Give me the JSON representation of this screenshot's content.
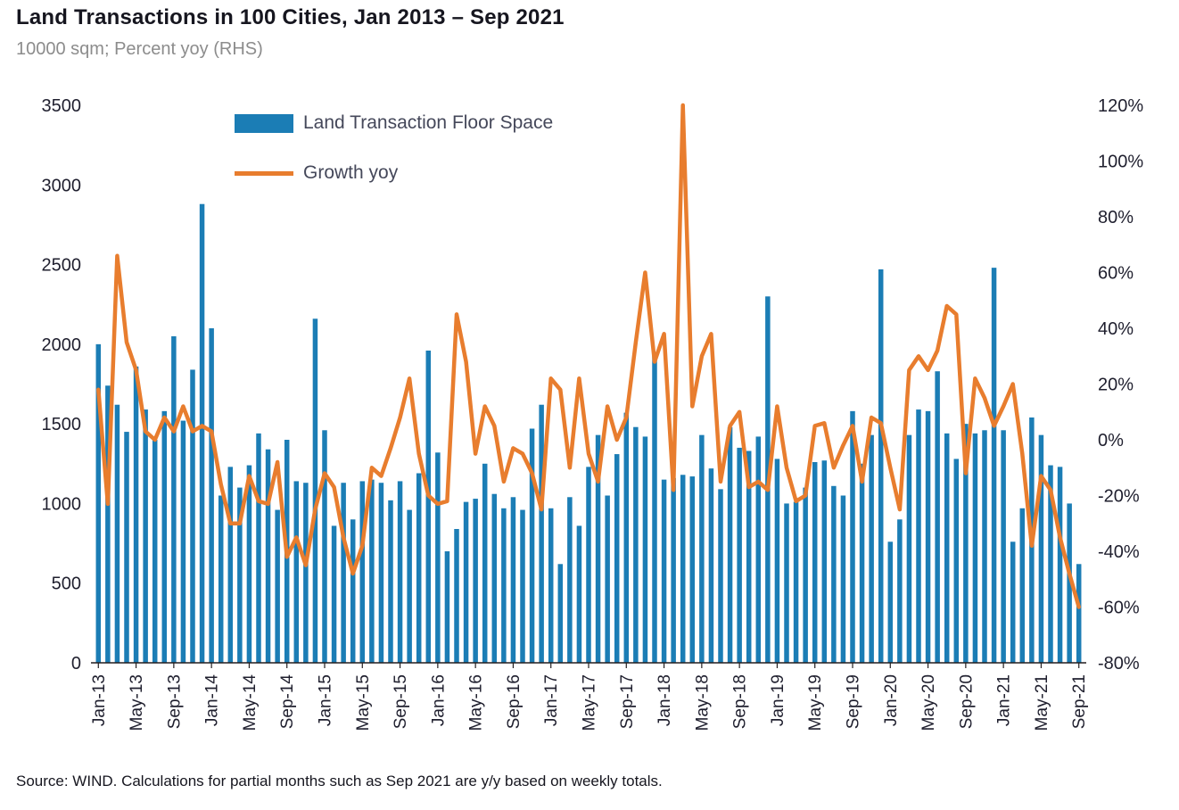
{
  "page": {
    "title": "Land Transactions in 100 Cities, Jan 2013 – Sep 2021",
    "subtitle": "10000 sqm; Percent yoy (RHS)",
    "source": "Source: WIND. Calculations for partial months such as Sep 2021 are y/y based on weekly totals."
  },
  "legend": {
    "bar_label": "Land Transaction Floor Space",
    "line_label": "Growth yoy"
  },
  "colors": {
    "bar": "#1b7db5",
    "line": "#e87d2e",
    "axis_text": "#1f1f2e",
    "axis_line": "#231f20",
    "subtitle_text": "#8c8c8c"
  },
  "chart_data": {
    "type": "bar+line",
    "title": "Land Transactions in 100 Cities, Jan 2013 – Sep 2021",
    "units_note": "10000 sqm; Percent yoy (RHS)",
    "legend_position": "top-left-inside",
    "grid": false,
    "x_tick_every": 4,
    "months": [
      "Jan-13",
      "Feb-13",
      "Mar-13",
      "Apr-13",
      "May-13",
      "Jun-13",
      "Jul-13",
      "Aug-13",
      "Sep-13",
      "Oct-13",
      "Nov-13",
      "Dec-13",
      "Jan-14",
      "Feb-14",
      "Mar-14",
      "Apr-14",
      "May-14",
      "Jun-14",
      "Jul-14",
      "Aug-14",
      "Sep-14",
      "Oct-14",
      "Nov-14",
      "Dec-14",
      "Jan-15",
      "Feb-15",
      "Mar-15",
      "Apr-15",
      "May-15",
      "Jun-15",
      "Jul-15",
      "Aug-15",
      "Sep-15",
      "Oct-15",
      "Nov-15",
      "Dec-15",
      "Jan-16",
      "Feb-16",
      "Mar-16",
      "Apr-16",
      "May-16",
      "Jun-16",
      "Jul-16",
      "Aug-16",
      "Sep-16",
      "Oct-16",
      "Nov-16",
      "Dec-16",
      "Jan-17",
      "Feb-17",
      "Mar-17",
      "Apr-17",
      "May-17",
      "Jun-17",
      "Jul-17",
      "Aug-17",
      "Sep-17",
      "Oct-17",
      "Nov-17",
      "Dec-17",
      "Jan-18",
      "Feb-18",
      "Mar-18",
      "Apr-18",
      "May-18",
      "Jun-18",
      "Jul-18",
      "Aug-18",
      "Sep-18",
      "Oct-18",
      "Nov-18",
      "Dec-18",
      "Jan-19",
      "Feb-19",
      "Mar-19",
      "Apr-19",
      "May-19",
      "Jun-19",
      "Jul-19",
      "Aug-19",
      "Sep-19",
      "Oct-19",
      "Nov-19",
      "Dec-19",
      "Jan-20",
      "Feb-20",
      "Mar-20",
      "Apr-20",
      "May-20",
      "Jun-20",
      "Jul-20",
      "Aug-20",
      "Sep-20",
      "Oct-20",
      "Nov-20",
      "Dec-20",
      "Jan-21",
      "Feb-21",
      "Mar-21",
      "Apr-21",
      "May-21",
      "Jun-21",
      "Jul-21",
      "Aug-21",
      "Sep-21"
    ],
    "series": [
      {
        "name": "Land Transaction Floor Space",
        "type": "bar",
        "axis": "left",
        "values": [
          2000,
          1740,
          1620,
          1450,
          1860,
          1590,
          1400,
          1580,
          2050,
          1520,
          1840,
          2880,
          2100,
          1050,
          1230,
          1100,
          1240,
          1440,
          1340,
          960,
          1400,
          1140,
          1130,
          2160,
          1460,
          860,
          1130,
          900,
          1140,
          1150,
          1130,
          1020,
          1140,
          960,
          1190,
          1960,
          1320,
          700,
          840,
          1010,
          1030,
          1250,
          1060,
          970,
          1040,
          960,
          1470,
          1620,
          970,
          620,
          1040,
          860,
          1230,
          1430,
          1050,
          1310,
          1570,
          1480,
          1420,
          1950,
          1150,
          1160,
          1180,
          1170,
          1430,
          1220,
          1090,
          1480,
          1350,
          1330,
          1420,
          2300,
          1280,
          1000,
          1010,
          1100,
          1260,
          1270,
          1110,
          1050,
          1580,
          1250,
          1430,
          2470,
          760,
          900,
          1430,
          1590,
          1580,
          1830,
          1440,
          1280,
          1500,
          1440,
          1460,
          2480,
          1460,
          760,
          970,
          1540,
          1430,
          1240,
          1230,
          1000,
          620
        ]
      },
      {
        "name": "Growth yoy",
        "type": "line",
        "axis": "right",
        "values": [
          18,
          -23,
          66,
          35,
          25,
          3,
          0,
          8,
          3,
          12,
          3,
          5,
          3,
          -16,
          -30,
          -30,
          -13,
          -22,
          -23,
          -8,
          -42,
          -35,
          -45,
          -25,
          -12,
          -17,
          -35,
          -48,
          -38,
          -10,
          -13,
          -3,
          8,
          22,
          -5,
          -20,
          -23,
          -22,
          45,
          28,
          -5,
          12,
          5,
          -15,
          -3,
          -5,
          -12,
          -25,
          22,
          18,
          -10,
          22,
          -5,
          -15,
          12,
          0,
          8,
          35,
          60,
          28,
          38,
          -18,
          120,
          12,
          30,
          38,
          -15,
          5,
          10,
          -17,
          -15,
          -18,
          12,
          -10,
          -22,
          -20,
          5,
          6,
          -10,
          -2,
          5,
          -15,
          8,
          6,
          -10,
          -25,
          25,
          30,
          25,
          32,
          48,
          45,
          -12,
          22,
          15,
          5,
          12,
          20,
          -5,
          -38,
          -13,
          -18,
          -35,
          -48,
          -60
        ]
      }
    ],
    "left_axis": {
      "min": 0,
      "max": 3500,
      "ticks": [
        0,
        500,
        1000,
        1500,
        2000,
        2500,
        3000,
        3500
      ]
    },
    "right_axis": {
      "min": -80,
      "max": 120,
      "ticks": [
        -80,
        -60,
        -40,
        -20,
        0,
        20,
        40,
        60,
        80,
        100,
        120
      ],
      "suffix": "%"
    }
  }
}
